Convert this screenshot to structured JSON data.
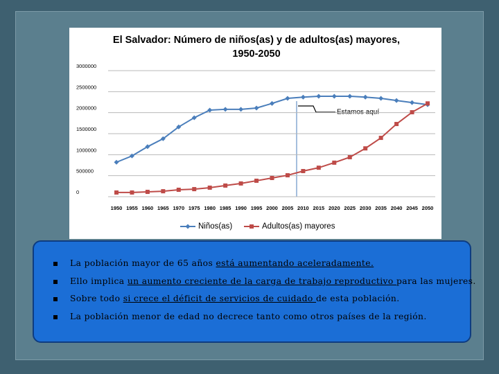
{
  "chart_data": {
    "type": "line",
    "title": "El Salvador: Número de niños(as) y de adultos(as) mayores, 1950-2050",
    "categories": [
      "1950",
      "1955",
      "1960",
      "1965",
      "1970",
      "1975",
      "1980",
      "1985",
      "1990",
      "1995",
      "2000",
      "2005",
      "2010",
      "2015",
      "2020",
      "2025",
      "2030",
      "2035",
      "2040",
      "2045",
      "2050"
    ],
    "series": [
      {
        "name": "Niños(as)",
        "color": "#4a7ebb",
        "marker": "diamond",
        "values": [
          820000,
          970000,
          1190000,
          1380000,
          1660000,
          1880000,
          2060000,
          2080000,
          2080000,
          2110000,
          2220000,
          2340000,
          2370000,
          2390000,
          2390000,
          2390000,
          2370000,
          2340000,
          2290000,
          2240000,
          2190000
        ]
      },
      {
        "name": "Adultos(as) mayores",
        "color": "#be4b48",
        "marker": "square",
        "values": [
          100000,
          100000,
          115000,
          130000,
          165000,
          180000,
          215000,
          265000,
          315000,
          380000,
          445000,
          510000,
          610000,
          690000,
          810000,
          940000,
          1150000,
          1400000,
          1730000,
          2010000,
          2220000
        ]
      }
    ],
    "ylim": [
      0,
      3000000
    ],
    "yticks": [
      0,
      500000,
      1000000,
      1500000,
      2000000,
      2500000,
      3000000
    ],
    "grid": true,
    "legend": "bottom",
    "annotation": "Estamos aquí"
  },
  "slide": {
    "bullets": [
      [
        {
          "text": "La población mayor de 65 años ",
          "underline": false
        },
        {
          "text": "está aumentando aceleradamente.",
          "underline": true
        }
      ],
      [
        {
          "text": "Ello implica ",
          "underline": false
        },
        {
          "text": "un aumento creciente de la carga de trabajo reproductivo ",
          "underline": true
        },
        {
          "text": "para las mujeres.",
          "underline": false
        }
      ],
      [
        {
          "text": "Sobre todo ",
          "underline": false
        },
        {
          "text": "si crece el déficit de servicios de cuidado ",
          "underline": true
        },
        {
          "text": "de esta población.",
          "underline": false
        }
      ],
      [
        {
          "text": "La población menor de edad no decrece tanto como otros países de la región.",
          "underline": false
        }
      ]
    ]
  }
}
